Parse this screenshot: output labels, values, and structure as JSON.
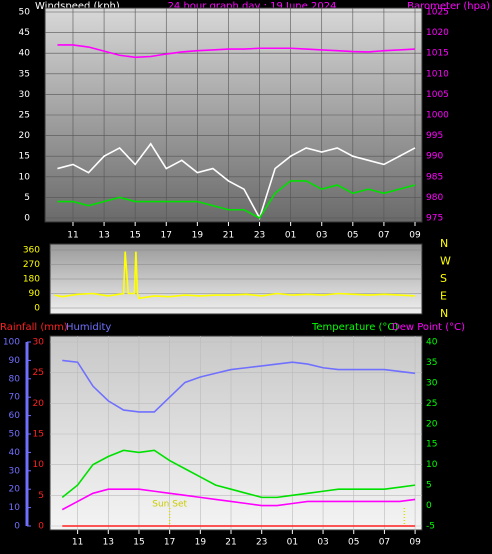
{
  "chart_data": [
    {
      "type": "line",
      "title": "24 hour graph day : 19 June 2024",
      "y_label": "Windspeed (kph)",
      "y_color": "#ffffff",
      "y2_label": "Barometer (hpa)",
      "y2_color": "#ff00ff",
      "grid": true,
      "xlim": [
        9.2,
        33.45
      ],
      "xticks": [
        11,
        13,
        15,
        17,
        19,
        21,
        23,
        {
          "value": 25,
          "label": "01"
        },
        {
          "value": 27,
          "label": "03"
        },
        {
          "value": 29,
          "label": "05"
        },
        {
          "value": 31,
          "label": "07"
        },
        {
          "value": 33,
          "label": "09"
        }
      ],
      "ylim": [
        0,
        50
      ],
      "yticks": [
        0,
        5,
        10,
        15,
        20,
        25,
        30,
        35,
        40,
        45,
        50
      ],
      "y2lim": [
        975,
        1025
      ],
      "y2ticks": [
        975,
        980,
        985,
        990,
        995,
        1000,
        1005,
        1010,
        1015,
        1020,
        1025
      ],
      "series": [
        {
          "color": "#ffffff",
          "axis": "y",
          "x": [
            10,
            11,
            12,
            13,
            14,
            15,
            16,
            17,
            18,
            19,
            20,
            21,
            22,
            23,
            24,
            25,
            26,
            27,
            28,
            29,
            30,
            31,
            32,
            33
          ],
          "values": [
            12,
            13,
            11,
            15,
            17,
            13,
            18,
            12,
            14,
            11,
            12,
            9,
            7,
            0,
            12,
            15,
            17,
            16,
            17,
            15,
            14,
            13,
            15,
            17
          ]
        },
        {
          "color": "#00e000",
          "axis": "y",
          "x": [
            10,
            11,
            12,
            13,
            14,
            15,
            16,
            17,
            18,
            19,
            20,
            21,
            22,
            23,
            24,
            25,
            26,
            27,
            28,
            29,
            30,
            31,
            32,
            33
          ],
          "values": [
            4,
            4,
            3,
            4,
            5,
            4,
            4,
            4,
            4,
            4,
            3,
            2,
            2,
            0,
            6,
            9,
            9,
            7,
            8,
            6,
            7,
            6,
            7,
            8
          ]
        },
        {
          "color": "#ff00ff",
          "axis": "y2",
          "x": [
            10,
            11,
            12,
            13,
            14,
            15,
            16,
            17,
            18,
            19,
            20,
            21,
            22,
            23,
            24,
            25,
            26,
            27,
            28,
            29,
            30,
            31,
            32,
            33
          ],
          "values": [
            1017,
            1017,
            1016.5,
            1015.5,
            1014.5,
            1014,
            1014.2,
            1014.8,
            1015.3,
            1015.6,
            1015.8,
            1016,
            1016,
            1016.2,
            1016.2,
            1016.2,
            1016,
            1015.8,
            1015.6,
            1015.4,
            1015.3,
            1015.6,
            1015.8,
            1016
          ]
        }
      ]
    },
    {
      "type": "line",
      "y_color": "#ffff00",
      "grid": true,
      "xlim": [
        9.2,
        33.45
      ],
      "ylim": [
        0,
        360
      ],
      "yticks": [
        0,
        90,
        180,
        270,
        360
      ],
      "compass_labels": [
        "N",
        "W",
        "S",
        "E",
        "N"
      ],
      "series": [
        {
          "color": "#ffff00",
          "axis": "y",
          "x": [
            9.5,
            10,
            11,
            12,
            13,
            14,
            14.1,
            14.3,
            14.7,
            14.8,
            14.9,
            15,
            16,
            17,
            18,
            19,
            20,
            21,
            22,
            23,
            24,
            25,
            26,
            27,
            28,
            29,
            30,
            31,
            32,
            33
          ],
          "values": [
            80,
            70,
            85,
            90,
            75,
            90,
            350,
            90,
            90,
            350,
            90,
            60,
            75,
            70,
            80,
            75,
            80,
            80,
            85,
            75,
            90,
            80,
            85,
            80,
            90,
            85,
            80,
            85,
            80,
            75
          ]
        }
      ]
    },
    {
      "type": "line",
      "y_label": "Rainfall (mm)",
      "y_color": "#ff2020",
      "y3_label": "Humidity",
      "y3_color": "#7070ff",
      "y2_label": "Temperature (°C)",
      "y2_color": "#00ff00",
      "y2b_label": "Dew Point (°C)",
      "y2b_color": "#ff00ff",
      "grid": true,
      "xlim": [
        9.2,
        33.45
      ],
      "xticks": [
        11,
        13,
        15,
        17,
        19,
        21,
        23,
        {
          "value": 25,
          "label": "01"
        },
        {
          "value": 27,
          "label": "03"
        },
        {
          "value": 29,
          "label": "05"
        },
        {
          "value": 31,
          "label": "07"
        },
        {
          "value": 33,
          "label": "09"
        }
      ],
      "ylim": [
        0,
        30
      ],
      "yticks": [
        0,
        5,
        10,
        15,
        20,
        25,
        30
      ],
      "y3lim": [
        0,
        100
      ],
      "y3ticks": [
        0,
        10,
        20,
        30,
        40,
        50,
        60,
        70,
        80,
        90,
        100
      ],
      "y2lim": [
        -5,
        40
      ],
      "y2ticks": [
        -5,
        0,
        5,
        10,
        15,
        20,
        25,
        30,
        35,
        40
      ],
      "annotations": [
        {
          "x": 17,
          "text": "Sun Set"
        },
        {
          "x": 32.3
        }
      ],
      "series": [
        {
          "color": "#ff2020",
          "axis": "y",
          "x": [
            10,
            11,
            12,
            13,
            14,
            15,
            16,
            17,
            18,
            19,
            20,
            21,
            22,
            23,
            24,
            25,
            26,
            27,
            28,
            29,
            30,
            31,
            32,
            33
          ],
          "values": [
            0,
            0,
            0,
            0,
            0,
            0,
            0,
            0,
            0,
            0,
            0,
            0,
            0,
            0,
            0,
            0,
            0,
            0,
            0,
            0,
            0,
            0,
            0,
            0
          ]
        },
        {
          "color": "#7070ff",
          "axis": "y3",
          "x": [
            10,
            11,
            12,
            13,
            14,
            15,
            16,
            17,
            18,
            19,
            20,
            21,
            22,
            23,
            24,
            25,
            26,
            27,
            28,
            29,
            30,
            31,
            32,
            33
          ],
          "values": [
            90,
            89,
            76,
            68,
            63,
            62,
            62,
            70,
            78,
            81,
            83,
            85,
            86,
            87,
            88,
            89,
            88,
            86,
            85,
            85,
            85,
            85,
            84,
            83
          ]
        },
        {
          "color": "#00e000",
          "axis": "y2",
          "x": [
            10,
            11,
            12,
            13,
            14,
            15,
            16,
            17,
            18,
            19,
            20,
            21,
            22,
            23,
            24,
            25,
            26,
            27,
            28,
            29,
            30,
            31,
            32,
            33
          ],
          "values": [
            2,
            5,
            10,
            12,
            13.5,
            13,
            13.5,
            11,
            9,
            7,
            5,
            4,
            3,
            2,
            2,
            2.5,
            3,
            3.5,
            4,
            4,
            4,
            4,
            4.5,
            5
          ]
        },
        {
          "color": "#ff00ff",
          "axis": "y2",
          "x": [
            10,
            11,
            12,
            13,
            14,
            15,
            16,
            17,
            18,
            19,
            20,
            21,
            22,
            23,
            24,
            25,
            26,
            27,
            28,
            29,
            30,
            31,
            32,
            33
          ],
          "values": [
            -1,
            1,
            3,
            4,
            4,
            4,
            3.5,
            3,
            2.5,
            2,
            1.5,
            1,
            0.5,
            0,
            0,
            0.5,
            1,
            1,
            1,
            1,
            1,
            1,
            1,
            1.5
          ]
        }
      ]
    }
  ]
}
